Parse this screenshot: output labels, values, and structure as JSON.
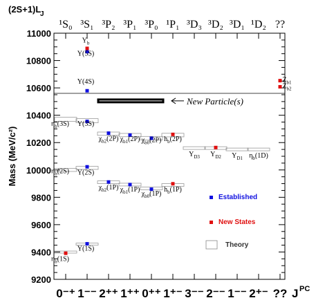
{
  "chart_data": {
    "type": "scatter",
    "header_label": "(2S+1)L",
    "header_sub": "J",
    "columns": [
      {
        "top": "¹S₀",
        "bottom": "0⁻⁺"
      },
      {
        "top": "³S₁",
        "bottom": "1⁻⁻"
      },
      {
        "top": "³P₂",
        "bottom": "2⁺⁺"
      },
      {
        "top": "³P₁",
        "bottom": "1⁺⁺"
      },
      {
        "top": "³P₀",
        "bottom": "0⁺⁺"
      },
      {
        "top": "¹P₁",
        "bottom": "1⁺⁻"
      },
      {
        "top": "³D₃",
        "bottom": "3⁻⁻"
      },
      {
        "top": "³D₂",
        "bottom": "2⁻⁻"
      },
      {
        "top": "³D₁",
        "bottom": "1⁻⁻"
      },
      {
        "top": "¹D₂",
        "bottom": "2⁺⁻"
      },
      {
        "top": "??",
        "bottom": "??"
      }
    ],
    "jpc_label": "J",
    "jpc_sup": "PC",
    "ylabel": "Mass (MeV/c²)",
    "ylim": [
      9200,
      11000
    ],
    "yticks": [
      "9200",
      "9400",
      "9600",
      "9800",
      "10000",
      "10200",
      "10400",
      "10600",
      "10800",
      "11000"
    ],
    "threshold_line": 10560,
    "theory_boxes": [
      {
        "col": 0,
        "y": 9400,
        "h": 14
      },
      {
        "col": 0,
        "y": 10000,
        "h": 22
      },
      {
        "col": 0,
        "y": 10370,
        "h": 30
      },
      {
        "col": 1,
        "y": 9460,
        "h": 10
      },
      {
        "col": 1,
        "y": 10015,
        "h": 22
      },
      {
        "col": 1,
        "y": 10360,
        "h": 30
      },
      {
        "col": 2,
        "y": 9910,
        "h": 20
      },
      {
        "col": 2,
        "y": 10265,
        "h": 24
      },
      {
        "col": 3,
        "y": 9893,
        "h": 20
      },
      {
        "col": 3,
        "y": 10255,
        "h": 24
      },
      {
        "col": 4,
        "y": 9865,
        "h": 20
      },
      {
        "col": 4,
        "y": 10232,
        "h": 26
      },
      {
        "col": 5,
        "y": 9890,
        "h": 20
      },
      {
        "col": 5,
        "y": 10255,
        "h": 26
      },
      {
        "col": 6,
        "y": 10160,
        "h": 20
      },
      {
        "col": 7,
        "y": 10160,
        "h": 20
      },
      {
        "col": 8,
        "y": 10150,
        "h": 20
      },
      {
        "col": 9,
        "y": 10150,
        "h": 20
      }
    ],
    "established": [
      {
        "col": 1,
        "y": 9460
      },
      {
        "col": 1,
        "y": 10023
      },
      {
        "col": 1,
        "y": 10355
      },
      {
        "col": 1,
        "y": 10579
      },
      {
        "col": 1,
        "y": 10865
      },
      {
        "col": 2,
        "y": 10269
      },
      {
        "col": 2,
        "y": 9912
      },
      {
        "col": 3,
        "y": 10255
      },
      {
        "col": 3,
        "y": 9893
      },
      {
        "col": 4,
        "y": 10232
      },
      {
        "col": 4,
        "y": 9859
      }
    ],
    "new_states": [
      {
        "col": 0,
        "y": 9391
      },
      {
        "col": 1,
        "y": 10889
      },
      {
        "col": 5,
        "y": 9899
      },
      {
        "col": 5,
        "y": 10260
      },
      {
        "col": 7,
        "y": 10164
      },
      {
        "col": 10,
        "y": 10608
      },
      {
        "col": 10,
        "y": 10653
      }
    ],
    "state_labels": [
      {
        "base": "η",
        "sub": "b",
        "rest": "(1S)",
        "col": 0,
        "y": 9335,
        "dx": -8
      },
      {
        "base": "η",
        "sub": "b",
        "rest": "(2S)",
        "col": 0,
        "y": 9975,
        "dx": -8
      },
      {
        "base": "η",
        "sub": "b",
        "rest": "(3S)",
        "col": 0,
        "y": 10322,
        "dx": -8
      },
      {
        "base": "Υ",
        "sub": "",
        "rest": "(1S)",
        "col": 1,
        "y": 9410,
        "dx": -2
      },
      {
        "base": "Υ",
        "sub": "",
        "rest": "(2S)",
        "col": 1,
        "y": 9967,
        "dx": -2
      },
      {
        "base": "Υ",
        "sub": "",
        "rest": "(3S)",
        "col": 1,
        "y": 10322,
        "dx": -2
      },
      {
        "base": "Υ",
        "sub": "",
        "rest": "(4S)",
        "col": 1,
        "y": 10630,
        "dx": -2
      },
      {
        "base": "Υ",
        "sub": "",
        "rest": "(5S)",
        "col": 1,
        "y": 10835,
        "dx": -2
      },
      {
        "base": "Υ",
        "sub": "b",
        "rest": "",
        "col": 1,
        "y": 10932,
        "dx": -2
      },
      {
        "base": "χ",
        "sub": "b2",
        "rest": "(2P)",
        "col": 2,
        "y": 10215,
        "dx": 0
      },
      {
        "base": "χ",
        "sub": "b1",
        "rest": "(2P)",
        "col": 3,
        "y": 10210,
        "dx": 0
      },
      {
        "base": "χ",
        "sub": "b0",
        "rest": "(2P)",
        "col": 4,
        "y": 10203,
        "dx": 0
      },
      {
        "base": "h",
        "sub": "b",
        "rest": "(2P)",
        "col": 5,
        "y": 10210,
        "dx": 0
      },
      {
        "base": "χ",
        "sub": "b2",
        "rest": "(1P)",
        "col": 2,
        "y": 9857,
        "dx": 0
      },
      {
        "base": "χ",
        "sub": "b1",
        "rest": "(1P)",
        "col": 3,
        "y": 9843,
        "dx": 0
      },
      {
        "base": "χ",
        "sub": "b0",
        "rest": "(1P)",
        "col": 4,
        "y": 9813,
        "dx": 0
      },
      {
        "base": "h",
        "sub": "b",
        "rest": "(1P)",
        "col": 5,
        "y": 9843,
        "dx": 0
      },
      {
        "base": "Υ",
        "sub": "D3",
        "rest": "",
        "col": 6,
        "y": 10100,
        "dx": 0
      },
      {
        "base": "Υ",
        "sub": "D2",
        "rest": "",
        "col": 7,
        "y": 10100,
        "dx": 0
      },
      {
        "base": "Υ",
        "sub": "D1",
        "rest": "",
        "col": 8,
        "y": 10090,
        "dx": 0
      },
      {
        "base": "η",
        "sub": "b",
        "rest": "(1D)",
        "col": 9,
        "y": 10090,
        "dx": 0
      },
      {
        "base": "Z",
        "sub": "b2",
        "rest": "",
        "col": 10,
        "y": 10598,
        "dx": 10
      },
      {
        "base": "Z",
        "sub": "b1",
        "rest": "",
        "col": 10,
        "y": 10643,
        "dx": 10
      }
    ],
    "annotation": "New Particle(s)",
    "annotation_box": {
      "y": 10505,
      "h": 20
    },
    "legend": [
      {
        "name": "Established",
        "color": "#1010e0",
        "kind": "square"
      },
      {
        "name": "New States",
        "color": "#e01010",
        "kind": "square"
      },
      {
        "name": "Theory",
        "color": "#888888",
        "kind": "box"
      }
    ],
    "colors": {
      "established": "#1010e0",
      "new": "#e01010",
      "theory": "#999999"
    }
  }
}
